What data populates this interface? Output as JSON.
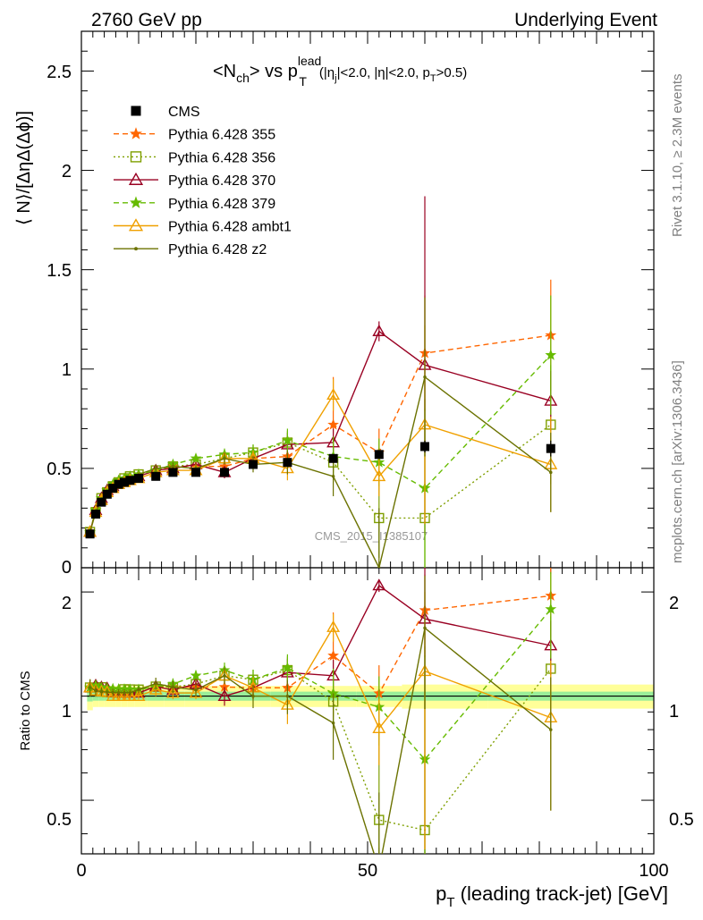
{
  "header": {
    "left": "2760 GeV pp",
    "right": "Underlying Event"
  },
  "side_labels": {
    "upper": "Rivet 3.1.10, ≥ 2.3M events",
    "lower": "mcplots.cern.ch [arXiv:1306.3436]"
  },
  "watermark": "CMS_2015_I1385107",
  "chart_data": {
    "type": "scatter",
    "title": "<N_ch> vs p_T^lead (|η_j|<2.0, |η|<2.0, p_T>0.5)",
    "title_parts": {
      "a": "<N",
      "a_sub": "ch",
      "b": "> vs p",
      "b_sup": "lead",
      "b_sub": "T",
      "c": "(|η",
      "c_sub": "j",
      "d": "|<2.0, |η|<2.0, p",
      "d_sub": "T",
      "e": ">0.5)"
    },
    "xlabel": "p_T (leading track-jet) [GeV]",
    "xlabel_parts": {
      "p": "p",
      "sub": "T",
      "rest": " (leading track-jet) [GeV]"
    },
    "ylabel": "⟨ N⟩/[ΔηΔ(Δϕ)]",
    "ratio_ylabel": "Ratio to CMS",
    "xlim": [
      0,
      100
    ],
    "ylim": [
      0,
      2.7
    ],
    "ratio_ylim": [
      0.35,
      2.35
    ],
    "ratio_log": true,
    "xticks": [
      "0",
      "50",
      "100"
    ],
    "yticks": [
      "0",
      "0.5",
      "1",
      "1.5",
      "2",
      "2.5"
    ],
    "ratio_yticks": [
      "0.5",
      "1",
      "2"
    ],
    "legend_position": "top-left",
    "x": [
      1.5,
      2.5,
      3.5,
      4.5,
      5.5,
      6.5,
      7.5,
      8.5,
      10,
      13,
      16,
      20,
      25,
      30,
      36,
      44,
      52,
      60,
      82
    ],
    "cms": {
      "name": "CMS",
      "color": "#000000",
      "values": [
        0.17,
        0.27,
        0.33,
        0.37,
        0.4,
        0.42,
        0.43,
        0.44,
        0.45,
        0.46,
        0.48,
        0.48,
        0.48,
        0.52,
        0.53,
        0.55,
        0.57,
        0.61,
        0.6
      ],
      "errors": [
        0.01,
        0.01,
        0.01,
        0.01,
        0.01,
        0.01,
        0.01,
        0.01,
        0.01,
        0.01,
        0.01,
        0.01,
        0.01,
        0.015,
        0.02,
        0.02,
        0.02,
        0.03,
        0.04
      ],
      "band_inner": [
        0.035,
        0.03,
        0.03,
        0.03,
        0.03,
        0.03,
        0.03,
        0.03,
        0.03,
        0.03,
        0.03,
        0.03,
        0.03,
        0.03,
        0.03,
        0.03,
        0.03,
        0.03,
        0.03
      ],
      "band_outer": [
        0.09,
        0.07,
        0.07,
        0.07,
        0.07,
        0.07,
        0.07,
        0.07,
        0.07,
        0.07,
        0.07,
        0.07,
        0.07,
        0.07,
        0.07,
        0.07,
        0.07,
        0.08,
        0.08
      ]
    },
    "series": [
      {
        "name": "Pythia 6.428 355",
        "color": "#ff6600",
        "dash": "6,4",
        "marker": "star",
        "fill": true,
        "values": [
          0.18,
          0.29,
          0.35,
          0.39,
          0.41,
          0.43,
          0.44,
          0.45,
          0.46,
          0.49,
          0.51,
          0.51,
          0.51,
          0.55,
          0.56,
          0.72,
          0.58,
          1.08,
          1.17
        ],
        "errors": [
          0.01,
          0.01,
          0.01,
          0.01,
          0.01,
          0.01,
          0.01,
          0.01,
          0.01,
          0.02,
          0.02,
          0.02,
          0.03,
          0.04,
          0.06,
          0.24,
          0.12,
          0.29,
          0.28
        ]
      },
      {
        "name": "Pythia 6.428 356",
        "color": "#7f9f00",
        "dash": "2,3",
        "marker": "square",
        "fill": false,
        "values": [
          0.18,
          0.28,
          0.35,
          0.38,
          0.41,
          0.43,
          0.45,
          0.46,
          0.47,
          0.49,
          0.51,
          0.52,
          0.55,
          0.58,
          0.63,
          0.53,
          0.25,
          0.25,
          0.72
        ],
        "errors": [
          0.01,
          0.01,
          0.01,
          0.01,
          0.01,
          0.01,
          0.01,
          0.01,
          0.01,
          0.02,
          0.02,
          0.02,
          0.03,
          0.04,
          0.06,
          0.1,
          0.2,
          0.6,
          0.3
        ]
      },
      {
        "name": "Pythia 6.428 370",
        "color": "#990022",
        "dash": "",
        "marker": "triangle",
        "fill": false,
        "values": [
          0.18,
          0.29,
          0.35,
          0.39,
          0.41,
          0.43,
          0.44,
          0.45,
          0.46,
          0.49,
          0.5,
          0.52,
          0.48,
          0.55,
          0.62,
          0.63,
          1.19,
          1.02,
          0.84
        ],
        "errors": [
          0.01,
          0.01,
          0.01,
          0.01,
          0.01,
          0.01,
          0.01,
          0.01,
          0.01,
          0.02,
          0.02,
          0.02,
          0.03,
          0.04,
          0.06,
          0.07,
          0.05,
          0.85,
          0.15
        ]
      },
      {
        "name": "Pythia 6.428 379",
        "color": "#66bb00",
        "dash": "6,4",
        "marker": "star",
        "fill": true,
        "values": [
          0.18,
          0.29,
          0.35,
          0.39,
          0.42,
          0.44,
          0.45,
          0.46,
          0.47,
          0.49,
          0.52,
          0.55,
          0.57,
          0.58,
          0.64,
          0.56,
          0.53,
          0.4,
          1.07
        ],
        "errors": [
          0.01,
          0.01,
          0.01,
          0.01,
          0.01,
          0.01,
          0.01,
          0.01,
          0.01,
          0.02,
          0.02,
          0.02,
          0.03,
          0.04,
          0.06,
          0.1,
          0.12,
          0.4,
          0.3
        ]
      },
      {
        "name": "Pythia 6.428 ambt1",
        "color": "#f0a000",
        "dash": "",
        "marker": "triangle",
        "fill": false,
        "values": [
          0.18,
          0.28,
          0.34,
          0.38,
          0.4,
          0.42,
          0.43,
          0.44,
          0.45,
          0.48,
          0.49,
          0.49,
          0.55,
          0.55,
          0.5,
          0.87,
          0.46,
          0.72,
          0.52
        ],
        "errors": [
          0.01,
          0.01,
          0.01,
          0.01,
          0.01,
          0.01,
          0.01,
          0.01,
          0.01,
          0.02,
          0.02,
          0.02,
          0.03,
          0.04,
          0.06,
          0.08,
          0.1,
          0.5,
          0.24
        ]
      },
      {
        "name": "Pythia 6.428 z2",
        "color": "#6b7200",
        "dash": "",
        "marker": "dot",
        "fill": true,
        "values": [
          0.18,
          0.28,
          0.34,
          0.38,
          0.41,
          0.43,
          0.44,
          0.45,
          0.47,
          0.5,
          0.51,
          0.5,
          0.55,
          0.52,
          0.53,
          0.46,
          0.0,
          0.96,
          0.48
        ],
        "errors": [
          0.01,
          0.01,
          0.01,
          0.01,
          0.01,
          0.01,
          0.01,
          0.01,
          0.01,
          0.02,
          0.02,
          0.02,
          0.03,
          0.04,
          0.06,
          0.1,
          0.3,
          0.4,
          0.2
        ]
      }
    ]
  }
}
